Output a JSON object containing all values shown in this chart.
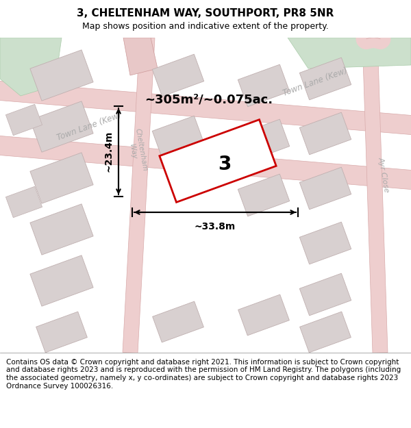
{
  "title": "3, CHELTENHAM WAY, SOUTHPORT, PR8 5NR",
  "subtitle": "Map shows position and indicative extent of the property.",
  "footer": "Contains OS data © Crown copyright and database right 2021. This information is subject to Crown copyright and database rights 2023 and is reproduced with the permission of HM Land Registry. The polygons (including the associated geometry, namely x, y co-ordinates) are subject to Crown copyright and database rights 2023 Ordnance Survey 100026316.",
  "area_text": "~305m²/~0.075ac.",
  "width_text": "~33.8m",
  "height_text": "~23.4m",
  "property_label": "3",
  "map_bg": "#f2eeee",
  "title_fontsize": 11,
  "subtitle_fontsize": 9,
  "footer_fontsize": 7.5,
  "road_fc": "#eecece",
  "road_ec": "#d8aaaa",
  "bldg_fc": "#d8d0d0",
  "bldg_ec": "#c0b0b0",
  "green_fc": "#cce0cc",
  "green_ec": "#aaccaa",
  "prop_fc": "#ffffff",
  "prop_ec": "#cc0000",
  "road_lc": "#aaaaaa",
  "dim_lc": "#111111",
  "street1": "Town Lane (Kew)",
  "street2": "Town Lane (Kew)",
  "street3": "Ayr Close",
  "street4": "Cheltenham\nWay"
}
